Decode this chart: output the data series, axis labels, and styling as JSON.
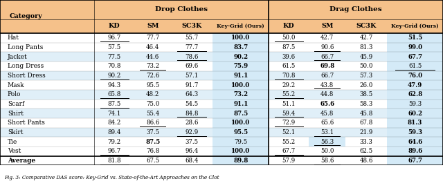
{
  "categories": [
    "Hat",
    "Long Pants",
    "Jacket",
    "Long Dress",
    "Short Dress",
    "Mask",
    "Polo",
    "Scarf",
    "Shirt",
    "Short Pants",
    "Skirt",
    "Tie",
    "Vest",
    "Average"
  ],
  "drop_clothes": {
    "KD": [
      96.7,
      57.5,
      77.5,
      70.8,
      90.2,
      94.3,
      65.8,
      87.5,
      74.1,
      84.2,
      89.4,
      79.2,
      96.7,
      81.8
    ],
    "SM": [
      77.7,
      46.4,
      44.6,
      73.2,
      72.6,
      95.5,
      48.2,
      75.0,
      55.4,
      86.6,
      37.5,
      87.5,
      76.8,
      67.5
    ],
    "SC3K": [
      55.7,
      77.7,
      78.6,
      69.6,
      57.1,
      91.7,
      64.3,
      54.5,
      84.8,
      28.6,
      92.9,
      37.5,
      96.4,
      68.4
    ],
    "Ours": [
      100.0,
      83.7,
      90.2,
      75.9,
      91.1,
      100.0,
      73.2,
      91.1,
      87.5,
      100.0,
      95.5,
      79.5,
      100.0,
      89.8
    ]
  },
  "drag_clothes": {
    "KD": [
      50.0,
      87.5,
      39.6,
      61.5,
      70.8,
      29.2,
      55.2,
      51.1,
      59.4,
      72.9,
      52.1,
      55.2,
      67.7,
      57.9
    ],
    "SM": [
      42.7,
      90.6,
      66.7,
      69.8,
      66.7,
      43.8,
      44.8,
      65.6,
      45.8,
      65.6,
      53.1,
      56.3,
      50.0,
      58.6
    ],
    "SC3K": [
      42.7,
      81.3,
      45.9,
      50.0,
      57.3,
      26.0,
      38.5,
      58.3,
      45.8,
      67.8,
      21.9,
      33.3,
      62.5,
      48.6
    ],
    "Ours": [
      51.5,
      99.0,
      67.7,
      61.5,
      76.0,
      47.9,
      62.8,
      59.3,
      60.2,
      81.3,
      59.3,
      64.6,
      89.6,
      67.7
    ]
  },
  "drop_underline": {
    "KD": [
      true,
      false,
      false,
      false,
      true,
      false,
      true,
      true,
      false,
      false,
      false,
      false,
      true,
      true
    ],
    "SM": [
      false,
      false,
      false,
      true,
      false,
      false,
      false,
      false,
      false,
      true,
      false,
      false,
      false,
      false
    ],
    "SC3K": [
      false,
      true,
      true,
      false,
      false,
      false,
      false,
      false,
      true,
      false,
      true,
      false,
      false,
      false
    ],
    "Ours": [
      false,
      false,
      false,
      false,
      false,
      false,
      false,
      false,
      false,
      false,
      false,
      false,
      false,
      false
    ]
  },
  "drag_underline": {
    "KD": [
      true,
      false,
      false,
      false,
      true,
      false,
      true,
      false,
      true,
      true,
      false,
      false,
      true,
      false
    ],
    "SM": [
      false,
      true,
      true,
      false,
      false,
      true,
      false,
      false,
      false,
      false,
      true,
      true,
      false,
      true
    ],
    "SC3K": [
      false,
      false,
      false,
      false,
      false,
      false,
      false,
      false,
      false,
      false,
      false,
      false,
      false,
      false
    ],
    "Ours": [
      false,
      false,
      false,
      true,
      false,
      false,
      false,
      false,
      false,
      false,
      false,
      false,
      false,
      false
    ]
  },
  "drop_bold": {
    "KD": [
      false,
      false,
      false,
      false,
      false,
      false,
      false,
      false,
      false,
      false,
      false,
      false,
      false,
      false
    ],
    "SM": [
      false,
      false,
      false,
      false,
      false,
      false,
      false,
      false,
      false,
      false,
      false,
      true,
      false,
      false
    ],
    "SC3K": [
      false,
      false,
      false,
      false,
      false,
      false,
      false,
      false,
      false,
      false,
      false,
      false,
      false,
      false
    ],
    "Ours": [
      true,
      true,
      true,
      true,
      true,
      true,
      true,
      true,
      true,
      true,
      true,
      false,
      true,
      true
    ]
  },
  "drag_bold": {
    "KD": [
      false,
      false,
      false,
      false,
      false,
      false,
      false,
      false,
      false,
      false,
      false,
      false,
      false,
      false
    ],
    "SM": [
      false,
      false,
      false,
      true,
      false,
      false,
      false,
      true,
      false,
      false,
      false,
      false,
      false,
      false
    ],
    "SC3K": [
      false,
      false,
      false,
      false,
      false,
      false,
      false,
      false,
      false,
      false,
      false,
      false,
      false,
      false
    ],
    "Ours": [
      true,
      true,
      true,
      false,
      true,
      true,
      true,
      false,
      true,
      true,
      true,
      true,
      true,
      true
    ]
  },
  "drop_cell_blue": {
    "KD": [
      false,
      false,
      false,
      false,
      false,
      false,
      false,
      false,
      false,
      false,
      false,
      false,
      false,
      false
    ],
    "SM": [
      false,
      false,
      false,
      false,
      false,
      false,
      false,
      false,
      false,
      false,
      false,
      false,
      false,
      false
    ],
    "SC3K": [
      false,
      false,
      false,
      false,
      false,
      false,
      false,
      false,
      false,
      false,
      false,
      false,
      false,
      false
    ],
    "Ours": [
      true,
      true,
      true,
      true,
      true,
      true,
      true,
      true,
      true,
      true,
      true,
      true,
      true,
      true
    ]
  },
  "drag_cell_blue": {
    "KD": [
      false,
      false,
      false,
      false,
      false,
      false,
      false,
      false,
      false,
      false,
      false,
      false,
      false,
      false
    ],
    "SM": [
      false,
      false,
      false,
      false,
      false,
      false,
      false,
      false,
      false,
      false,
      false,
      true,
      false,
      false
    ],
    "SC3K": [
      false,
      false,
      false,
      false,
      false,
      false,
      false,
      false,
      false,
      false,
      false,
      false,
      false,
      false
    ],
    "Ours": [
      true,
      true,
      true,
      true,
      true,
      true,
      true,
      true,
      true,
      true,
      true,
      true,
      true,
      true
    ]
  },
  "row_light_blue": [
    false,
    false,
    true,
    false,
    true,
    false,
    true,
    false,
    true,
    false,
    true,
    false,
    false,
    false
  ],
  "header_color": "#F5C18A",
  "light_blue": "#E0EFF8",
  "cell_blue": "#D4EAF7",
  "white": "#FFFFFF",
  "caption": "Fig. 3: Comparative DAS score: Key-Grid vs. State-of-the-Art Approaches on the Clot"
}
